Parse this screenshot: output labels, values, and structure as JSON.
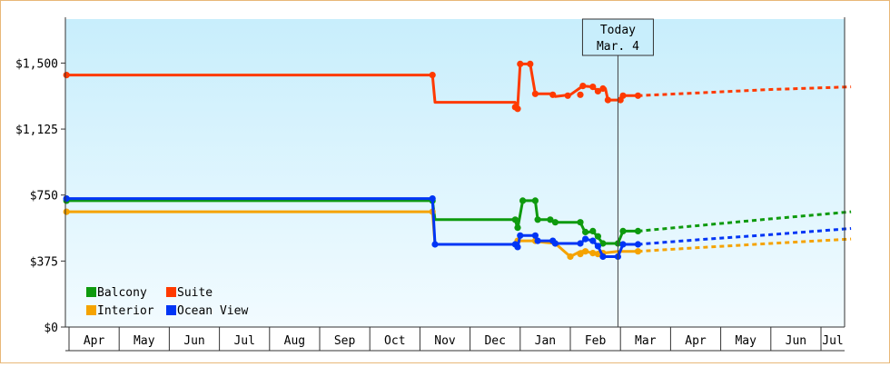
{
  "chart_data": {
    "type": "line",
    "title": "",
    "xlabel": "",
    "ylabel": "",
    "ylim": [
      0,
      1750
    ],
    "y_ticks": [
      {
        "value": 0,
        "label": "$0"
      },
      {
        "value": 375,
        "label": "$375"
      },
      {
        "value": 750,
        "label": "$750"
      },
      {
        "value": 1125,
        "label": "$1,125"
      },
      {
        "value": 1500,
        "label": "$1,500"
      }
    ],
    "x_months": [
      "Apr",
      "May",
      "Jun",
      "Jul",
      "Aug",
      "Sep",
      "Oct",
      "Nov",
      "Dec",
      "Jan",
      "Feb",
      "Mar",
      "Apr",
      "May",
      "Jun",
      "Jul"
    ],
    "x_range_months": [
      0,
      15.65
    ],
    "today": {
      "line1": "Today",
      "line2": "Mar. 4",
      "x": 10.95
    },
    "grid": false,
    "legend_position": "bottom-left",
    "legend": [
      {
        "name": "Balcony",
        "color": "#0e9a0e"
      },
      {
        "name": "Suite",
        "color": "#ff3a00"
      },
      {
        "name": "Interior",
        "color": "#f5a300"
      },
      {
        "name": "Ocean View",
        "color": "#0035f5"
      }
    ],
    "series": [
      {
        "name": "Suite",
        "color": "#ff3a00",
        "points": [
          [
            -0.05,
            1432
          ],
          [
            7.25,
            1432
          ],
          [
            7.3,
            1277
          ],
          [
            8.9,
            1277
          ],
          [
            8.95,
            1250
          ],
          [
            9.0,
            1495
          ],
          [
            9.2,
            1495
          ],
          [
            9.3,
            1325
          ],
          [
            9.6,
            1325
          ],
          [
            9.7,
            1310
          ],
          [
            10.0,
            1320
          ],
          [
            10.25,
            1370
          ],
          [
            10.45,
            1365
          ],
          [
            10.55,
            1340
          ],
          [
            10.7,
            1355
          ],
          [
            10.75,
            1290
          ],
          [
            10.95,
            1290
          ],
          [
            11.05,
            1315
          ],
          [
            11.35,
            1315
          ]
        ],
        "markers": [
          [
            -0.05,
            1432
          ],
          [
            7.25,
            1432
          ],
          [
            8.9,
            1250
          ],
          [
            8.95,
            1240
          ],
          [
            9.0,
            1495
          ],
          [
            9.2,
            1495
          ],
          [
            9.3,
            1325
          ],
          [
            9.65,
            1320
          ],
          [
            9.95,
            1315
          ],
          [
            10.2,
            1320
          ],
          [
            10.25,
            1370
          ],
          [
            10.45,
            1365
          ],
          [
            10.55,
            1340
          ],
          [
            10.65,
            1355
          ],
          [
            10.75,
            1290
          ],
          [
            11.0,
            1290
          ],
          [
            11.05,
            1315
          ],
          [
            11.35,
            1315
          ]
        ],
        "projection": [
          [
            11.35,
            1315
          ],
          [
            12.5,
            1330
          ],
          [
            14.0,
            1350
          ],
          [
            15.6,
            1365
          ]
        ]
      },
      {
        "name": "Balcony",
        "color": "#0e9a0e",
        "points": [
          [
            -0.05,
            718
          ],
          [
            7.25,
            718
          ],
          [
            7.3,
            610
          ],
          [
            8.9,
            610
          ],
          [
            8.95,
            560
          ],
          [
            9.05,
            718
          ],
          [
            9.3,
            718
          ],
          [
            9.35,
            610
          ],
          [
            9.6,
            610
          ],
          [
            9.7,
            595
          ],
          [
            10.2,
            595
          ],
          [
            10.3,
            535
          ],
          [
            10.45,
            545
          ],
          [
            10.55,
            510
          ],
          [
            10.65,
            475
          ],
          [
            10.95,
            475
          ],
          [
            11.05,
            545
          ],
          [
            11.35,
            545
          ]
        ],
        "markers": [
          [
            -0.05,
            718
          ],
          [
            7.25,
            718
          ],
          [
            8.9,
            610
          ],
          [
            8.95,
            565
          ],
          [
            9.05,
            718
          ],
          [
            9.3,
            718
          ],
          [
            9.35,
            610
          ],
          [
            9.6,
            610
          ],
          [
            9.7,
            595
          ],
          [
            10.2,
            595
          ],
          [
            10.3,
            540
          ],
          [
            10.45,
            545
          ],
          [
            10.55,
            515
          ],
          [
            10.65,
            475
          ],
          [
            10.95,
            475
          ],
          [
            11.05,
            545
          ],
          [
            11.35,
            545
          ]
        ],
        "projection": [
          [
            11.35,
            545
          ],
          [
            12.5,
            575
          ],
          [
            14.0,
            615
          ],
          [
            15.6,
            655
          ]
        ]
      },
      {
        "name": "Interior",
        "color": "#f5a300",
        "points": [
          [
            -0.05,
            655
          ],
          [
            7.25,
            655
          ],
          [
            7.3,
            470
          ],
          [
            8.9,
            470
          ],
          [
            8.95,
            490
          ],
          [
            9.3,
            490
          ],
          [
            9.35,
            485
          ],
          [
            9.7,
            475
          ],
          [
            10.0,
            400
          ],
          [
            10.2,
            430
          ],
          [
            10.3,
            430
          ],
          [
            10.45,
            420
          ],
          [
            10.55,
            415
          ],
          [
            10.65,
            420
          ],
          [
            10.95,
            430
          ],
          [
            11.35,
            430
          ]
        ],
        "markers": [
          [
            -0.05,
            655
          ],
          [
            7.25,
            655
          ],
          [
            8.95,
            490
          ],
          [
            9.3,
            490
          ],
          [
            9.7,
            475
          ],
          [
            10.0,
            400
          ],
          [
            10.2,
            415
          ],
          [
            10.3,
            430
          ],
          [
            10.45,
            420
          ],
          [
            10.55,
            415
          ],
          [
            10.65,
            420
          ],
          [
            11.35,
            430
          ]
        ],
        "projection": [
          [
            11.35,
            430
          ],
          [
            12.5,
            450
          ],
          [
            14.0,
            475
          ],
          [
            15.6,
            500
          ]
        ]
      },
      {
        "name": "Ocean View",
        "color": "#0035f5",
        "points": [
          [
            -0.05,
            730
          ],
          [
            7.25,
            730
          ],
          [
            7.3,
            470
          ],
          [
            8.9,
            470
          ],
          [
            8.95,
            455
          ],
          [
            9.0,
            520
          ],
          [
            9.3,
            520
          ],
          [
            9.35,
            490
          ],
          [
            9.6,
            490
          ],
          [
            9.7,
            475
          ],
          [
            10.2,
            475
          ],
          [
            10.3,
            500
          ],
          [
            10.45,
            490
          ],
          [
            10.55,
            460
          ],
          [
            10.65,
            400
          ],
          [
            10.95,
            400
          ],
          [
            11.05,
            470
          ],
          [
            11.35,
            470
          ]
        ],
        "markers": [
          [
            -0.05,
            730
          ],
          [
            7.25,
            730
          ],
          [
            7.3,
            470
          ],
          [
            8.9,
            470
          ],
          [
            8.95,
            455
          ],
          [
            9.0,
            520
          ],
          [
            9.3,
            520
          ],
          [
            9.35,
            490
          ],
          [
            9.65,
            490
          ],
          [
            9.7,
            475
          ],
          [
            10.2,
            475
          ],
          [
            10.3,
            500
          ],
          [
            10.45,
            490
          ],
          [
            10.55,
            460
          ],
          [
            10.65,
            400
          ],
          [
            10.95,
            400
          ],
          [
            11.05,
            470
          ],
          [
            11.35,
            470
          ]
        ],
        "projection": [
          [
            11.35,
            470
          ],
          [
            12.5,
            495
          ],
          [
            14.0,
            525
          ],
          [
            15.6,
            560
          ]
        ]
      }
    ]
  }
}
